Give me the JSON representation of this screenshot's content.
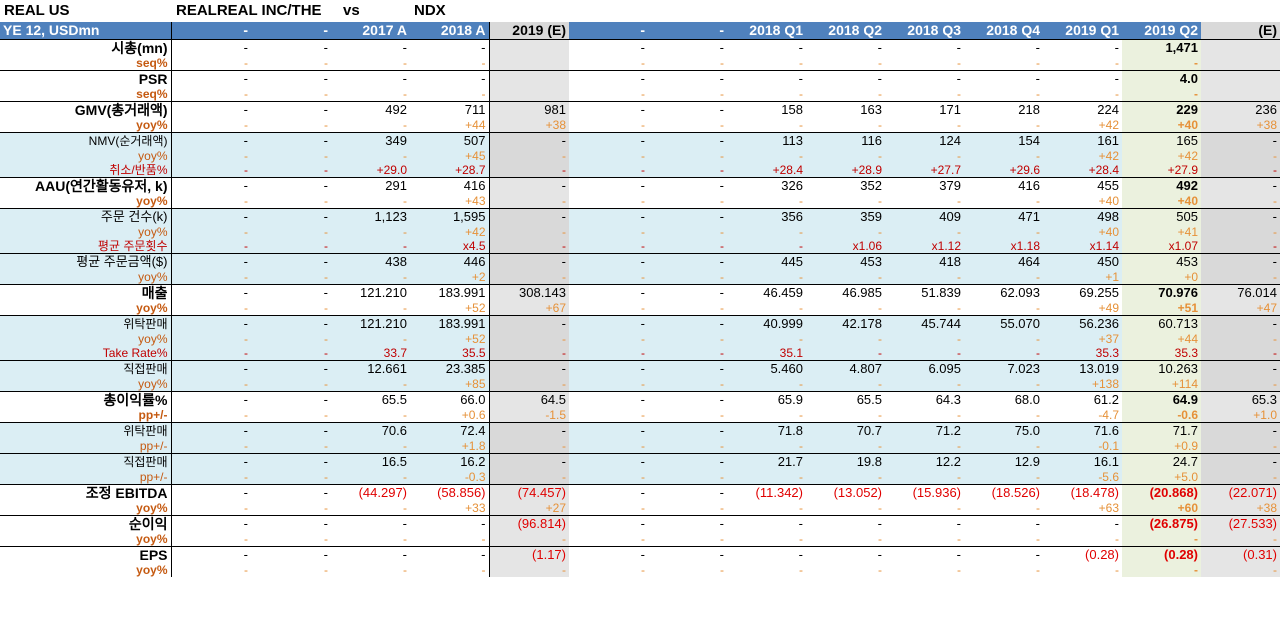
{
  "title": {
    "ticker": "REAL US",
    "company": "REALREAL INC/THE",
    "vs": "vs",
    "index": "NDX"
  },
  "columns": [
    "YE 12,  USDmn",
    "-",
    "-",
    "2017 A",
    "2018 A",
    "2019 (E)",
    "-",
    "-",
    "2018 Q1",
    "2018 Q2",
    "2018 Q3",
    "2018 Q4",
    "2019 Q1",
    "2019 Q2",
    "(E)"
  ],
  "rows": [
    {
      "style": "lvl1",
      "top": true,
      "label": "시총(mn)",
      "cells": [
        "-",
        "-",
        "-",
        "-",
        "",
        "-",
        "-",
        "-",
        "-",
        "-",
        "-",
        "-",
        "1,471",
        ""
      ]
    },
    {
      "style": "sub1",
      "label": "seq%",
      "cells": [
        "-",
        "-",
        "-",
        "-",
        "",
        "-",
        "-",
        "-",
        "-",
        "-",
        "-",
        "-",
        "-",
        ""
      ]
    },
    {
      "style": "lvl1",
      "top": true,
      "label": "PSR",
      "cells": [
        "-",
        "-",
        "-",
        "-",
        "",
        "-",
        "-",
        "-",
        "-",
        "-",
        "-",
        "-",
        "4.0",
        ""
      ]
    },
    {
      "style": "sub1",
      "label": "seq%",
      "cells": [
        "-",
        "-",
        "-",
        "-",
        "",
        "-",
        "-",
        "-",
        "-",
        "-",
        "-",
        "-",
        "-",
        ""
      ]
    },
    {
      "style": "lvl1",
      "top": true,
      "label": "GMV(총거래액)",
      "cells": [
        "-",
        "-",
        "492",
        "711",
        "981",
        "-",
        "-",
        "158",
        "163",
        "171",
        "218",
        "224",
        "229",
        "236"
      ]
    },
    {
      "style": "sub1",
      "label": "yoy%",
      "cells": [
        "-",
        "-",
        "-",
        "+44",
        "+38",
        "-",
        "-",
        "-",
        "-",
        "-",
        "-",
        "+42",
        "+40",
        "+38"
      ]
    },
    {
      "style": "lvl2",
      "top": true,
      "blue": true,
      "label": "NMV(순거래액)",
      "cells": [
        "-",
        "-",
        "349",
        "507",
        "-",
        "-",
        "-",
        "113",
        "116",
        "124",
        "154",
        "161",
        "165",
        "-"
      ]
    },
    {
      "style": "sub2",
      "blue": true,
      "label": "yoy%",
      "cells": [
        "-",
        "-",
        "-",
        "+45",
        "-",
        "-",
        "-",
        "-",
        "-",
        "-",
        "-",
        "+42",
        "+42",
        "-"
      ]
    },
    {
      "style": "sub3",
      "blue": true,
      "label": "취소/반품%",
      "cells": [
        "-",
        "-",
        "+29.0",
        "+28.7",
        "-",
        "-",
        "-",
        "+28.4",
        "+28.9",
        "+27.7",
        "+29.6",
        "+28.4",
        "+27.9",
        "-"
      ]
    },
    {
      "style": "lvl1",
      "top": true,
      "label": "AAU(연간활동유저, k)",
      "cells": [
        "-",
        "-",
        "291",
        "416",
        "-",
        "-",
        "-",
        "326",
        "352",
        "379",
        "416",
        "455",
        "492",
        "-"
      ]
    },
    {
      "style": "sub1",
      "label": "yoy%",
      "cells": [
        "-",
        "-",
        "-",
        "+43",
        "-",
        "-",
        "-",
        "-",
        "-",
        "-",
        "-",
        "+40",
        "+40",
        "-"
      ]
    },
    {
      "style": "lvl2b",
      "top": true,
      "blue": true,
      "label": "주문 건수(k)",
      "cells": [
        "-",
        "-",
        "1,123",
        "1,595",
        "-",
        "-",
        "-",
        "356",
        "359",
        "409",
        "471",
        "498",
        "505",
        "-"
      ]
    },
    {
      "style": "sub2",
      "blue": true,
      "label": "yoy%",
      "cells": [
        "-",
        "-",
        "-",
        "+42",
        "-",
        "-",
        "-",
        "-",
        "-",
        "-",
        "-",
        "+40",
        "+41",
        "-"
      ]
    },
    {
      "style": "sub3",
      "blue": true,
      "label": "평균 주문횟수",
      "cells": [
        "-",
        "-",
        "-",
        "x4.5",
        "-",
        "-",
        "-",
        "-",
        "x1.06",
        "x1.12",
        "x1.18",
        "x1.14",
        "x1.07",
        "-"
      ]
    },
    {
      "style": "lvl2b",
      "top": true,
      "blue": true,
      "label": "평균 주문금액($)",
      "cells": [
        "-",
        "-",
        "438",
        "446",
        "-",
        "-",
        "-",
        "445",
        "453",
        "418",
        "464",
        "450",
        "453",
        "-"
      ]
    },
    {
      "style": "sub2",
      "blue": true,
      "label": "yoy%",
      "cells": [
        "-",
        "-",
        "-",
        "+2",
        "-",
        "-",
        "-",
        "-",
        "-",
        "-",
        "-",
        "+1",
        "+0",
        "-"
      ]
    },
    {
      "style": "lvl1",
      "top": true,
      "label": "매출",
      "cells": [
        "-",
        "-",
        "121.210",
        "183.991",
        "308.143",
        "-",
        "-",
        "46.459",
        "46.985",
        "51.839",
        "62.093",
        "69.255",
        "70.976",
        "76.014"
      ]
    },
    {
      "style": "sub1",
      "label": "yoy%",
      "cells": [
        "-",
        "-",
        "-",
        "+52",
        "+67",
        "-",
        "-",
        "-",
        "-",
        "-",
        "-",
        "+49",
        "+51",
        "+47"
      ]
    },
    {
      "style": "lvl2",
      "top": true,
      "blue": true,
      "label": "위탁판매",
      "cells": [
        "-",
        "-",
        "121.210",
        "183.991",
        "-",
        "-",
        "-",
        "40.999",
        "42.178",
        "45.744",
        "55.070",
        "56.236",
        "60.713",
        "-"
      ]
    },
    {
      "style": "sub2",
      "blue": true,
      "label": "yoy%",
      "cells": [
        "-",
        "-",
        "-",
        "+52",
        "-",
        "-",
        "-",
        "-",
        "-",
        "-",
        "-",
        "+37",
        "+44",
        "-"
      ]
    },
    {
      "style": "sub3",
      "blue": true,
      "label": "Take Rate%",
      "cells": [
        "-",
        "-",
        "33.7",
        "35.5",
        "-",
        "-",
        "-",
        "35.1",
        "-",
        "-",
        "-",
        "35.3",
        "35.3",
        "-"
      ]
    },
    {
      "style": "lvl2",
      "top": true,
      "blue": true,
      "label": "직접판매",
      "cells": [
        "-",
        "-",
        "12.661",
        "23.385",
        "-",
        "-",
        "-",
        "5.460",
        "4.807",
        "6.095",
        "7.023",
        "13.019",
        "10.263",
        "-"
      ]
    },
    {
      "style": "sub2",
      "blue": true,
      "label": "yoy%",
      "cells": [
        "-",
        "-",
        "-",
        "+85",
        "-",
        "-",
        "-",
        "-",
        "-",
        "-",
        "-",
        "+138",
        "+114",
        "-"
      ]
    },
    {
      "style": "lvl1",
      "top": true,
      "label": "총이익률%",
      "cells": [
        "-",
        "-",
        "65.5",
        "66.0",
        "64.5",
        "-",
        "-",
        "65.9",
        "65.5",
        "64.3",
        "68.0",
        "61.2",
        "64.9",
        "65.3"
      ]
    },
    {
      "style": "sub1",
      "label": "pp+/-",
      "cells": [
        "-",
        "-",
        "-",
        "+0.6",
        "-1.5",
        "-",
        "-",
        "-",
        "-",
        "-",
        "-",
        "-4.7",
        "-0.6",
        "+1.0"
      ]
    },
    {
      "style": "lvl2",
      "top": true,
      "blue": true,
      "label": "위탁판매",
      "cells": [
        "-",
        "-",
        "70.6",
        "72.4",
        "-",
        "-",
        "-",
        "71.8",
        "70.7",
        "71.2",
        "75.0",
        "71.6",
        "71.7",
        "-"
      ]
    },
    {
      "style": "sub2",
      "blue": true,
      "label": "pp+/-",
      "cells": [
        "-",
        "-",
        "-",
        "+1.8",
        "-",
        "-",
        "-",
        "-",
        "-",
        "-",
        "-",
        "-0.1",
        "+0.9",
        "-"
      ]
    },
    {
      "style": "lvl2",
      "top": true,
      "blue": true,
      "label": "직접판매",
      "cells": [
        "-",
        "-",
        "16.5",
        "16.2",
        "-",
        "-",
        "-",
        "21.7",
        "19.8",
        "12.2",
        "12.9",
        "16.1",
        "24.7",
        "-"
      ]
    },
    {
      "style": "sub2",
      "blue": true,
      "label": "pp+/-",
      "cells": [
        "-",
        "-",
        "-",
        "-0.3",
        "-",
        "-",
        "-",
        "-",
        "-",
        "-",
        "-",
        "-5.6",
        "+5.0",
        "-"
      ]
    },
    {
      "style": "lvl1",
      "top": true,
      "label": "조정 EBITDA",
      "cells": [
        "-",
        "-",
        "(44.297)",
        "(58.856)",
        "(74.457)",
        "-",
        "-",
        "(11.342)",
        "(13.052)",
        "(15.936)",
        "(18.526)",
        "(18.478)",
        "(20.868)",
        "(22.071)"
      ]
    },
    {
      "style": "sub1",
      "label": "yoy%",
      "cells": [
        "-",
        "-",
        "-",
        "+33",
        "+27",
        "-",
        "-",
        "-",
        "-",
        "-",
        "-",
        "+63",
        "+60",
        "+38"
      ]
    },
    {
      "style": "lvl1",
      "top": true,
      "label": "순이익",
      "cells": [
        "-",
        "-",
        "-",
        "-",
        "(96.814)",
        "-",
        "-",
        "-",
        "-",
        "-",
        "-",
        "-",
        "(26.875)",
        "(27.533)"
      ]
    },
    {
      "style": "sub1",
      "label": "yoy%",
      "cells": [
        "-",
        "-",
        "-",
        "-",
        "-",
        "-",
        "-",
        "-",
        "-",
        "-",
        "-",
        "-",
        "-",
        "-"
      ]
    },
    {
      "style": "lvl1",
      "top": true,
      "label": "EPS",
      "cells": [
        "-",
        "-",
        "-",
        "-",
        "(1.17)",
        "-",
        "-",
        "-",
        "-",
        "-",
        "-",
        "(0.28)",
        "(0.28)",
        "(0.31)"
      ]
    },
    {
      "style": "sub1",
      "label": "yoy%",
      "cells": [
        "-",
        "-",
        "-",
        "-",
        "-",
        "-",
        "-",
        "-",
        "-",
        "-",
        "-",
        "-",
        "-",
        "-"
      ]
    }
  ]
}
